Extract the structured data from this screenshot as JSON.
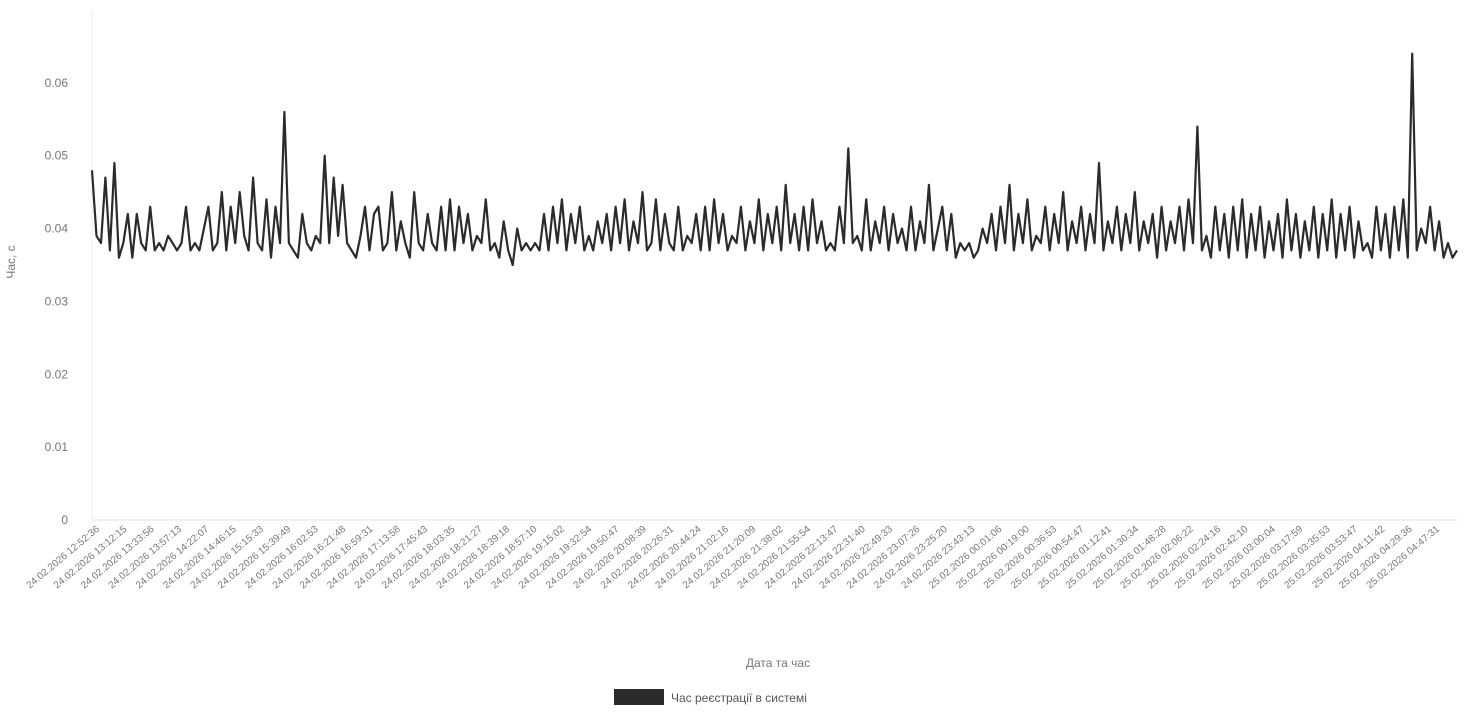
{
  "chart_data": {
    "type": "line",
    "title": "",
    "xlabel": "Дата та час",
    "ylabel": "Час, с",
    "ylim": [
      0,
      0.07
    ],
    "y_ticks": [
      "0",
      "0.01",
      "0.02",
      "0.03",
      "0.04",
      "0.05",
      "0.06"
    ],
    "grid": true,
    "legend_position": "bottom",
    "line_color": "#2b2b2b",
    "x_tick_labels": [
      "24.02.2026 12:52:36",
      "24.02.2026 13:12:15",
      "24.02.2026 13:33:56",
      "24.02.2026 13:57:13",
      "24.02.2026 14:22:07",
      "24.02.2026 14:46:15",
      "24.02.2026 15:15:33",
      "24.02.2026 15:39:49",
      "24.02.2026 16:02:53",
      "24.02.2026 16:21:48",
      "24.02.2026 16:59:31",
      "24.02.2026 17:13:58",
      "24.02.2026 17:45:43",
      "24.02.2026 18:03:35",
      "24.02.2026 18:21:27",
      "24.02.2026 18:39:18",
      "24.02.2026 18:57:10",
      "24.02.2026 19:15:02",
      "24.02.2026 19:32:54",
      "24.02.2026 19:50:47",
      "24.02.2026 20:08:39",
      "24.02.2026 20:26:31",
      "24.02.2026 20:44:24",
      "24.02.2026 21:02:16",
      "24.02.2026 21:20:09",
      "24.02.2026 21:38:02",
      "24.02.2026 21:55:54",
      "24.02.2026 22:13:47",
      "24.02.2026 22:31:40",
      "24.02.2026 22:49:33",
      "24.02.2026 23:07:26",
      "24.02.2026 23:25:20",
      "24.02.2026 23:43:13",
      "25.02.2026 00:01:06",
      "25.02.2026 00:19:00",
      "25.02.2026 00:36:53",
      "25.02.2026 00:54:47",
      "25.02.2026 01:12:41",
      "25.02.2026 01:30:34",
      "25.02.2026 01:48:28",
      "25.02.2026 02:06:22",
      "25.02.2026 02:24:16",
      "25.02.2026 02:42:10",
      "25.02.2026 03:00:04",
      "25.02.2026 03:17:59",
      "25.02.2026 03:35:53",
      "25.02.2026 03:53:47",
      "25.02.2026 04:11:42",
      "25.02.2026 04:29:36",
      "25.02.2026 04:47:31"
    ],
    "series": [
      {
        "name": "Час реєстрації в системі",
        "values": [
          0.048,
          0.039,
          0.038,
          0.047,
          0.037,
          0.049,
          0.036,
          0.038,
          0.042,
          0.036,
          0.042,
          0.038,
          0.037,
          0.043,
          0.037,
          0.038,
          0.037,
          0.039,
          0.038,
          0.037,
          0.038,
          0.043,
          0.037,
          0.038,
          0.037,
          0.04,
          0.043,
          0.037,
          0.038,
          0.045,
          0.037,
          0.043,
          0.038,
          0.045,
          0.039,
          0.037,
          0.047,
          0.038,
          0.037,
          0.044,
          0.036,
          0.043,
          0.038,
          0.056,
          0.038,
          0.037,
          0.036,
          0.042,
          0.038,
          0.037,
          0.039,
          0.038,
          0.05,
          0.038,
          0.047,
          0.039,
          0.046,
          0.038,
          0.037,
          0.036,
          0.039,
          0.043,
          0.037,
          0.042,
          0.043,
          0.037,
          0.038,
          0.045,
          0.037,
          0.041,
          0.038,
          0.036,
          0.045,
          0.038,
          0.037,
          0.042,
          0.038,
          0.037,
          0.043,
          0.037,
          0.044,
          0.037,
          0.043,
          0.038,
          0.042,
          0.037,
          0.039,
          0.038,
          0.044,
          0.037,
          0.038,
          0.036,
          0.041,
          0.037,
          0.035,
          0.04,
          0.037,
          0.038,
          0.037,
          0.038,
          0.037,
          0.042,
          0.037,
          0.043,
          0.038,
          0.044,
          0.037,
          0.042,
          0.038,
          0.043,
          0.037,
          0.039,
          0.037,
          0.041,
          0.038,
          0.042,
          0.037,
          0.043,
          0.038,
          0.044,
          0.037,
          0.041,
          0.038,
          0.045,
          0.037,
          0.038,
          0.044,
          0.037,
          0.042,
          0.038,
          0.037,
          0.043,
          0.037,
          0.039,
          0.038,
          0.042,
          0.037,
          0.043,
          0.037,
          0.044,
          0.038,
          0.042,
          0.037,
          0.039,
          0.038,
          0.043,
          0.037,
          0.041,
          0.038,
          0.044,
          0.037,
          0.042,
          0.038,
          0.043,
          0.037,
          0.046,
          0.038,
          0.042,
          0.037,
          0.043,
          0.037,
          0.044,
          0.038,
          0.041,
          0.037,
          0.038,
          0.037,
          0.043,
          0.038,
          0.051,
          0.038,
          0.039,
          0.037,
          0.044,
          0.037,
          0.041,
          0.038,
          0.043,
          0.037,
          0.042,
          0.038,
          0.04,
          0.037,
          0.043,
          0.037,
          0.041,
          0.038,
          0.046,
          0.037,
          0.04,
          0.043,
          0.037,
          0.042,
          0.036,
          0.038,
          0.037,
          0.038,
          0.036,
          0.037,
          0.04,
          0.038,
          0.042,
          0.037,
          0.043,
          0.038,
          0.046,
          0.037,
          0.042,
          0.038,
          0.044,
          0.037,
          0.039,
          0.038,
          0.043,
          0.037,
          0.042,
          0.038,
          0.045,
          0.037,
          0.041,
          0.038,
          0.043,
          0.037,
          0.042,
          0.038,
          0.049,
          0.037,
          0.041,
          0.038,
          0.043,
          0.037,
          0.042,
          0.038,
          0.045,
          0.037,
          0.041,
          0.038,
          0.042,
          0.036,
          0.043,
          0.037,
          0.041,
          0.038,
          0.043,
          0.037,
          0.044,
          0.038,
          0.054,
          0.037,
          0.039,
          0.036,
          0.043,
          0.037,
          0.042,
          0.036,
          0.043,
          0.037,
          0.044,
          0.036,
          0.042,
          0.037,
          0.043,
          0.036,
          0.041,
          0.037,
          0.042,
          0.036,
          0.044,
          0.037,
          0.042,
          0.036,
          0.041,
          0.037,
          0.043,
          0.036,
          0.042,
          0.037,
          0.044,
          0.036,
          0.042,
          0.037,
          0.043,
          0.036,
          0.041,
          0.037,
          0.038,
          0.036,
          0.043,
          0.037,
          0.042,
          0.036,
          0.043,
          0.037,
          0.044,
          0.036,
          0.064,
          0.037,
          0.04,
          0.038,
          0.043,
          0.037,
          0.041,
          0.036,
          0.038,
          0.036,
          0.037
        ]
      }
    ]
  }
}
